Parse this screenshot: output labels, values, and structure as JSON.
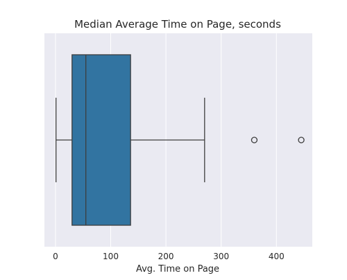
{
  "chart_data": {
    "type": "box",
    "title": "Median Average Time on Page, seconds",
    "xlabel": "Avg. Time on Page",
    "ylabel": "",
    "orientation": "horizontal",
    "xlim": [
      -20,
      465
    ],
    "xticks": [
      0,
      100,
      200,
      300,
      400
    ],
    "xtick_labels": [
      "0",
      "100",
      "200",
      "300",
      "400"
    ],
    "grid": true,
    "box": {
      "whisker_low": 1,
      "q1": 30,
      "median": 55,
      "q3": 136,
      "whisker_high": 270,
      "outliers": [
        360,
        445
      ]
    },
    "colors": {
      "plot_background": "#eaeaf2",
      "box_fill": "#3274a1",
      "line": "#3d3d3d",
      "grid": "#ffffff",
      "text": "#262626"
    }
  }
}
